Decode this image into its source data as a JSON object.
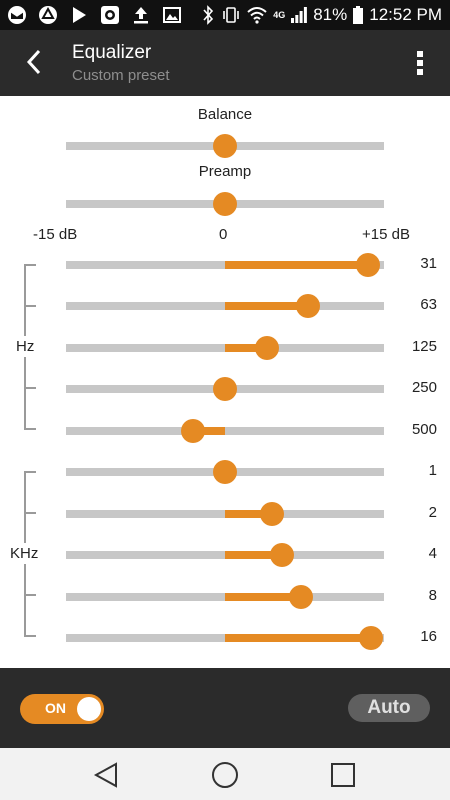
{
  "status_bar": {
    "left_icons": [
      "gmail-icon",
      "drive-icon",
      "play-store-icon",
      "camera-icon",
      "upload-icon",
      "gallery-icon"
    ],
    "right_icons": [
      "bluetooth-icon",
      "vibrate-icon",
      "wifi-icon",
      "network-4g-icon",
      "signal-icon",
      "battery-icon"
    ],
    "network_label": "4G",
    "battery": "81%",
    "time": "12:52 PM"
  },
  "header": {
    "title": "Equalizer",
    "subtitle": "Custom preset"
  },
  "balance": {
    "label": "Balance",
    "value": 0
  },
  "preamp": {
    "label": "Preamp",
    "value": 0
  },
  "scale": {
    "min_label": "-15 dB",
    "mid_label": "0",
    "max_label": "+15 dB",
    "min": -15,
    "max": 15
  },
  "groups": {
    "hz_label": "Hz",
    "khz_label": "KHz"
  },
  "bands": [
    {
      "label": "31",
      "value": 13.5
    },
    {
      "label": "63",
      "value": 7.8
    },
    {
      "label": "125",
      "value": 4.0
    },
    {
      "label": "250",
      "value": 0
    },
    {
      "label": "500",
      "value": -3.0
    },
    {
      "label": "1",
      "value": 0
    },
    {
      "label": "2",
      "value": 4.4
    },
    {
      "label": "4",
      "value": 5.4
    },
    {
      "label": "8",
      "value": 7.2
    },
    {
      "label": "16",
      "value": 13.8
    }
  ],
  "controls": {
    "toggle_label": "ON",
    "toggle_on": true,
    "auto_label": "Auto"
  },
  "colors": {
    "accent": "#e58a23",
    "track": "#c7c7c7",
    "appbar": "#2b2b2b"
  }
}
